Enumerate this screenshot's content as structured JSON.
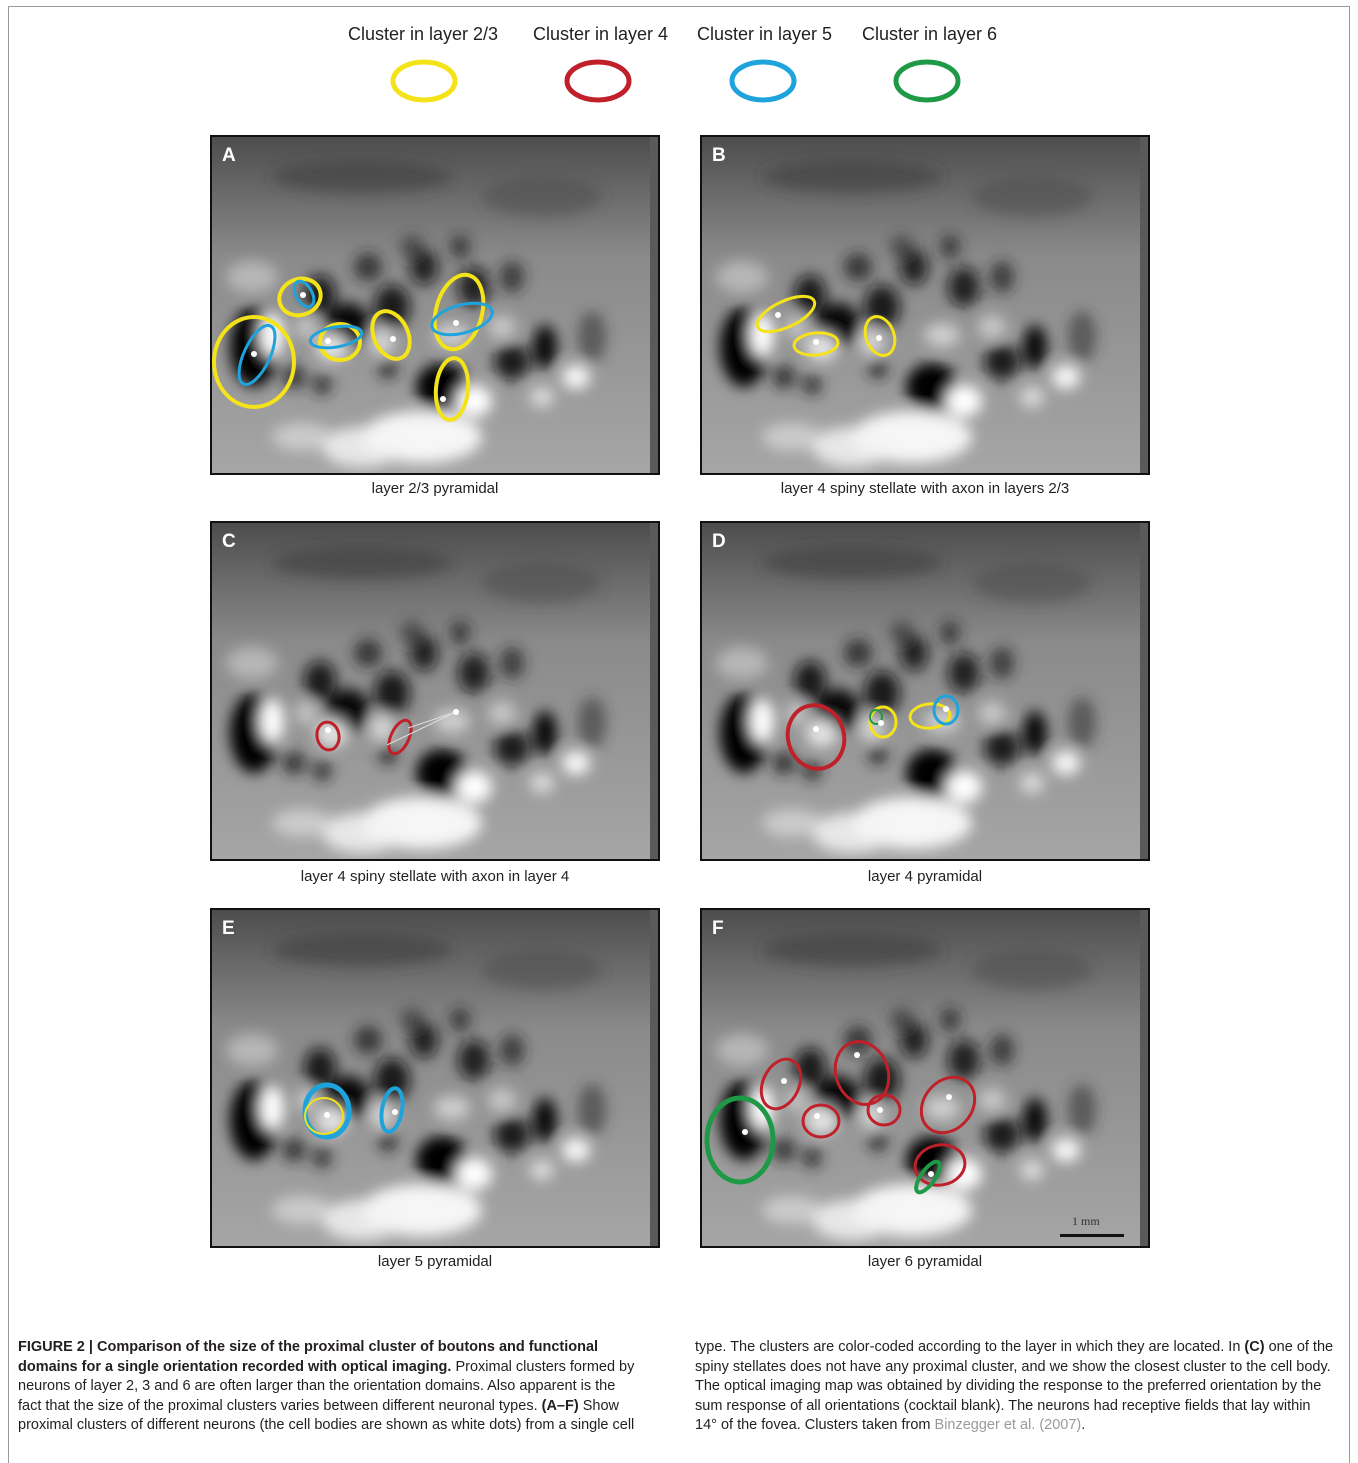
{
  "legend": [
    {
      "label": "Cluster in layer 2/3",
      "color": "#f5e31a"
    },
    {
      "label": "Cluster in layer 4",
      "color": "#c0202a"
    },
    {
      "label": "Cluster in layer 5",
      "color": "#1ea3dc"
    },
    {
      "label": "Cluster in layer 6",
      "color": "#1e9a47"
    }
  ],
  "panels": [
    {
      "letter": "A",
      "caption": "layer 2/3 pyramidal"
    },
    {
      "letter": "B",
      "caption": "layer 4 spiny stellate with axon in layers 2/3"
    },
    {
      "letter": "C",
      "caption": "layer 4 spiny stellate with axon in layer 4"
    },
    {
      "letter": "D",
      "caption": "layer 4 pyramidal"
    },
    {
      "letter": "E",
      "caption": "layer 5 pyramidal"
    },
    {
      "letter": "F",
      "caption": "layer 6 pyramidal"
    }
  ],
  "scale_bar": "1 mm",
  "caption": {
    "figure_title": "FIGURE 2 | Comparison of the size of the proximal cluster of boutons and functional domains for a single orientation recorded with optical imaging.",
    "body_1": "Proximal clusters formed by neurons of layer 2, 3 and 6 are often larger than the orientation domains. Also apparent is the fact that the size of the proximal clusters varies between different neuronal types.",
    "ref_af": "(A–F)",
    "body_2": "Show proximal clusters of different neurons (the cell bodies are shown as white dots) from a single cell type. The clusters are color-coded according to the layer in which they are located. In",
    "ref_c": "(C)",
    "body_3": "one of the spiny stellates does not have any proximal cluster, and we show the closest cluster to the cell body. The optical imaging map was obtained by dividing the response to the preferred orientation by the sum response of all orientations (cocktail blank). The neurons had receptive fields that lay within 14° of the fovea. Clusters taken from",
    "citation": "Binzegger et al. (2007)",
    "end": "."
  }
}
